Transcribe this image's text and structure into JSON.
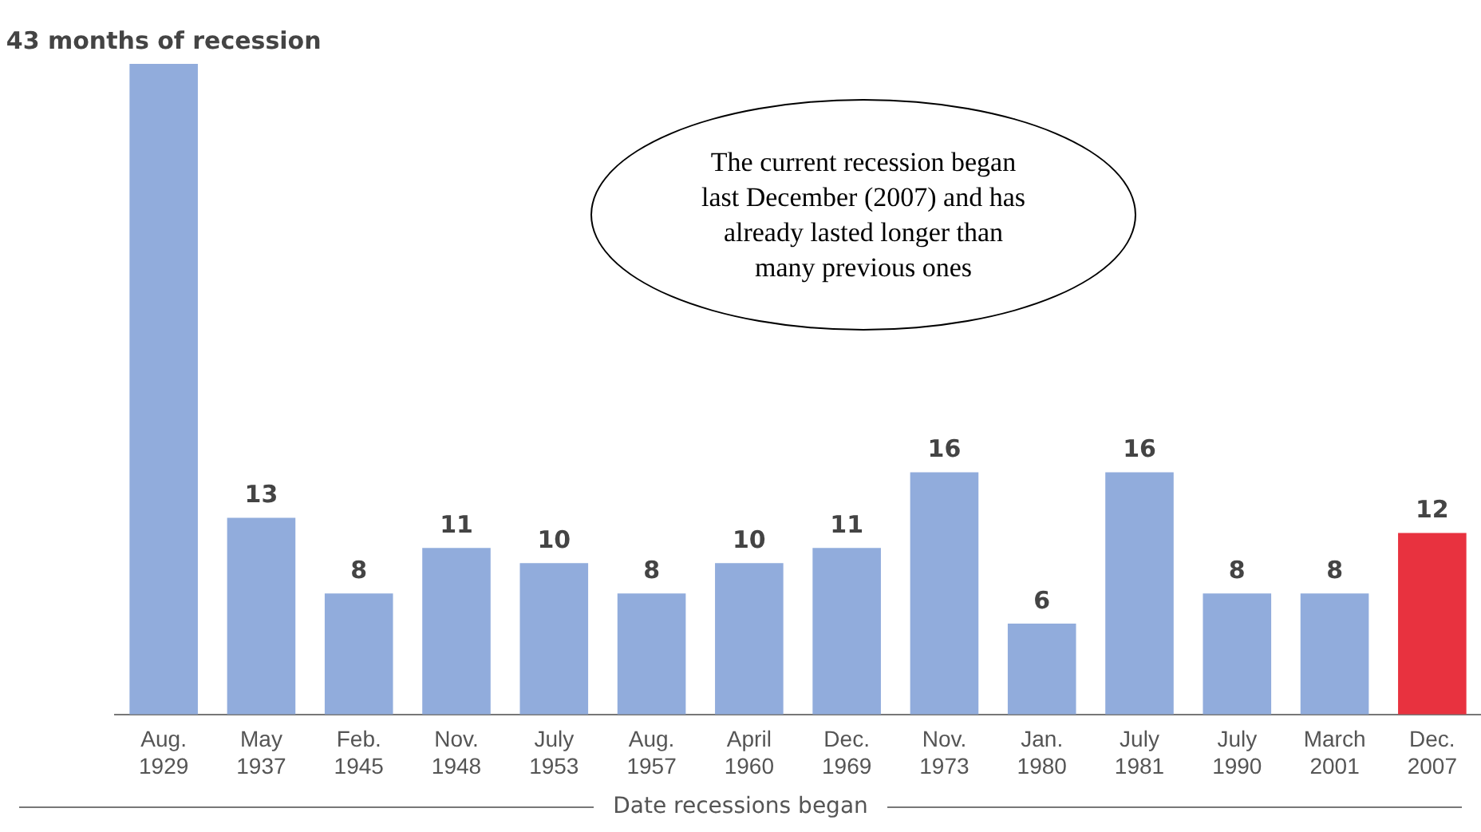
{
  "chart_data": {
    "type": "bar",
    "xlabel": "Date recessions began",
    "categories": [
      "Aug. 1929",
      "May 1937",
      "Feb. 1945",
      "Nov. 1948",
      "July 1953",
      "Aug. 1957",
      "April 1960",
      "Dec. 1969",
      "Nov. 1973",
      "Jan. 1980",
      "July 1981",
      "July 1990",
      "March 2001",
      "Dec. 2007"
    ],
    "values": [
      43,
      13,
      8,
      11,
      10,
      8,
      10,
      11,
      16,
      6,
      16,
      8,
      8,
      12
    ],
    "colors": [
      "#91acdc",
      "#91acdc",
      "#91acdc",
      "#91acdc",
      "#91acdc",
      "#91acdc",
      "#91acdc",
      "#91acdc",
      "#91acdc",
      "#91acdc",
      "#91acdc",
      "#91acdc",
      "#91acdc",
      "#e8323f"
    ],
    "value_labels": [
      "43 months of recession",
      "13",
      "8",
      "11",
      "10",
      "8",
      "10",
      "11",
      "16",
      "6",
      "16",
      "8",
      "8",
      "12"
    ],
    "annotations": [
      "The current recession began last December (2007) and has already lasted longer than many previous ones"
    ],
    "grid": false,
    "legend": false
  }
}
